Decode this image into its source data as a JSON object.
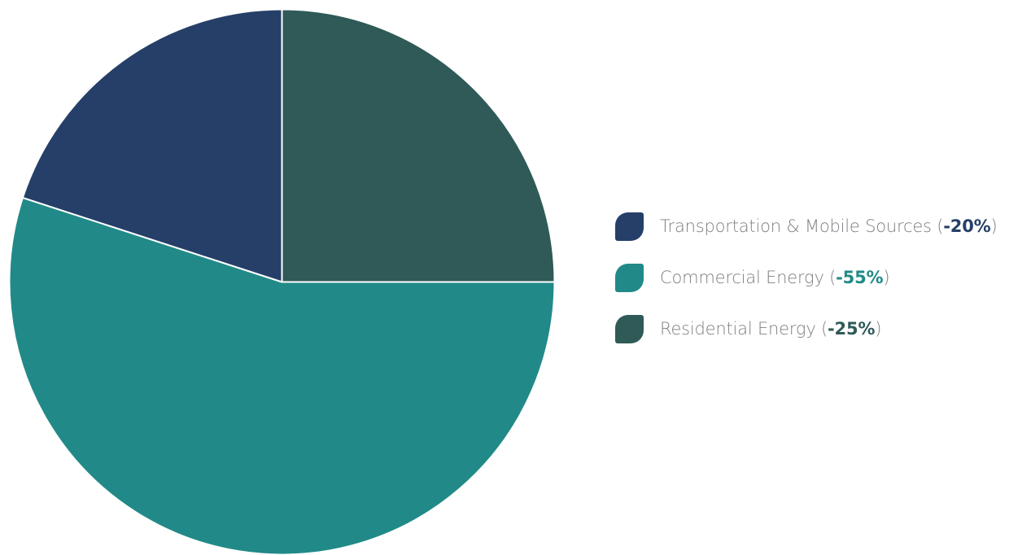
{
  "chart_data": {
    "type": "pie",
    "slices": [
      {
        "label": "Transportation & Mobile Sources",
        "pct_label": "-20%",
        "value": 20,
        "color": "#253f69"
      },
      {
        "label": "Commercial Energy",
        "pct_label": "-55%",
        "value": 55,
        "color": "#218a88"
      },
      {
        "label": "Residential Energy",
        "pct_label": "-25%",
        "value": 25,
        "color": "#2f5a57"
      }
    ],
    "legend_position": "right"
  }
}
